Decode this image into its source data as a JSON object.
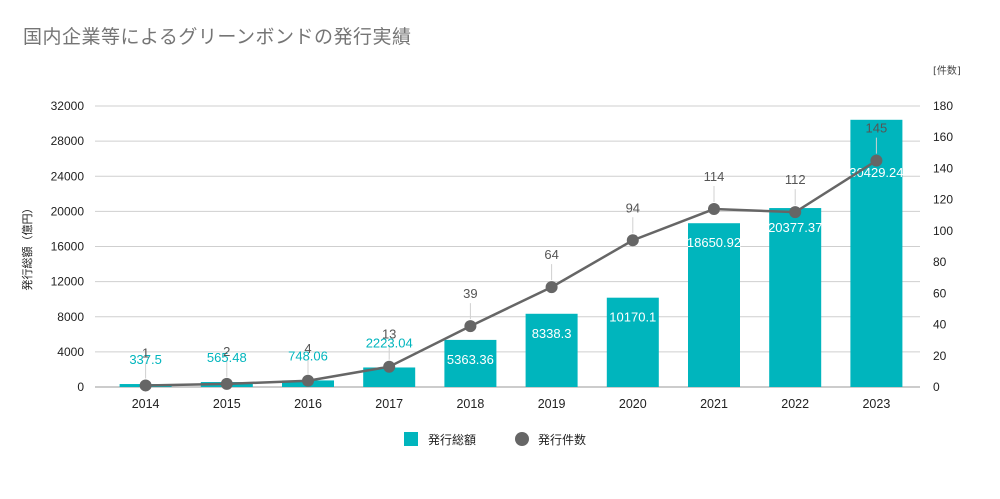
{
  "title": "国内企業等によるグリーンボンドの発行実績",
  "chart_data": {
    "type": "bar+line",
    "title": "国内企業等によるグリーンボンドの発行実績",
    "categories": [
      "2014",
      "2015",
      "2016",
      "2017",
      "2018",
      "2019",
      "2020",
      "2021",
      "2022",
      "2023"
    ],
    "series": [
      {
        "name": "発行総額",
        "type": "bar",
        "axis": "left",
        "color": "#00b5bd",
        "values": [
          337.5,
          565.48,
          748.06,
          2223.04,
          5363.36,
          8338.3,
          10170.1,
          18650.92,
          20377.37,
          30429.24
        ],
        "labels": [
          "337.5",
          "565.48",
          "748.06",
          "2223.04",
          "5363.36",
          "8338.3",
          "10170.1",
          "18650.92",
          "20377.37",
          "30429.24"
        ]
      },
      {
        "name": "発行件数",
        "type": "line",
        "axis": "right",
        "color": "#666666",
        "values": [
          1,
          2,
          4,
          13,
          39,
          64,
          94,
          114,
          112,
          145
        ],
        "labels": [
          "1",
          "2",
          "4",
          "13",
          "39",
          "64",
          "94",
          "114",
          "112",
          "145"
        ]
      }
    ],
    "y_left": {
      "label": "発行総額（億円）",
      "min": 0,
      "max": 32000,
      "ticks": [
        "0",
        "4000",
        "8000",
        "12000",
        "16000",
        "20000",
        "24000",
        "28000",
        "32000"
      ]
    },
    "y_right": {
      "label": "[件数]",
      "min": 0,
      "max": 180,
      "ticks": [
        "0",
        "20",
        "40",
        "60",
        "80",
        "100",
        "120",
        "140",
        "160",
        "180"
      ]
    },
    "legend": {
      "position": "bottom",
      "items": [
        {
          "label": "発行総額",
          "marker": "square",
          "color": "#00b5bd"
        },
        {
          "label": "発行件数",
          "marker": "circle",
          "color": "#666666"
        }
      ]
    },
    "grid": true
  }
}
